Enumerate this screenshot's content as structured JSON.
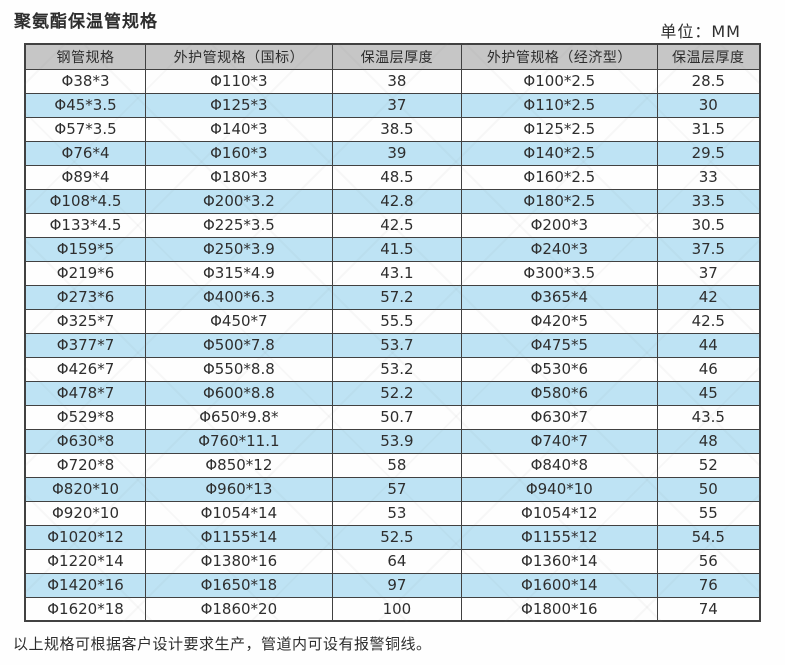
{
  "page": {
    "title": "聚氨酯保温管规格",
    "unit_label": "单位：MM",
    "footnote": "以上规格可根据客户设计要求生产，管道内可设有报警铜线。"
  },
  "colors": {
    "header_bg": "#c6c6c6",
    "stripe_blue": "#bee3f4",
    "border": "#414141",
    "text": "#2e2e2e"
  },
  "chart_data": {
    "type": "table",
    "title": "聚氨酯保温管规格",
    "unit": "MM",
    "columns": [
      "钢管规格",
      "外护管规格（国标）",
      "保温层厚度",
      "外护管规格（经济型）",
      "保温层厚度"
    ],
    "rows": [
      [
        "Φ38*3",
        "Φ110*3",
        "38",
        "Φ100*2.5",
        "28.5"
      ],
      [
        "Φ45*3.5",
        "Φ125*3",
        "37",
        "Φ110*2.5",
        "30"
      ],
      [
        "Φ57*3.5",
        "Φ140*3",
        "38.5",
        "Φ125*2.5",
        "31.5"
      ],
      [
        "Φ76*4",
        "Φ160*3",
        "39",
        "Φ140*2.5",
        "29.5"
      ],
      [
        "Φ89*4",
        "Φ180*3",
        "48.5",
        "Φ160*2.5",
        "33"
      ],
      [
        "Φ108*4.5",
        "Φ200*3.2",
        "42.8",
        "Φ180*2.5",
        "33.5"
      ],
      [
        "Φ133*4.5",
        "Φ225*3.5",
        "42.5",
        "Φ200*3",
        "30.5"
      ],
      [
        "Φ159*5",
        "Φ250*3.9",
        "41.5",
        "Φ240*3",
        "37.5"
      ],
      [
        "Φ219*6",
        "Φ315*4.9",
        "43.1",
        "Φ300*3.5",
        "37"
      ],
      [
        "Φ273*6",
        "Φ400*6.3",
        "57.2",
        "Φ365*4",
        "42"
      ],
      [
        "Φ325*7",
        "Φ450*7",
        "55.5",
        "Φ420*5",
        "42.5"
      ],
      [
        "Φ377*7",
        "Φ500*7.8",
        "53.7",
        "Φ475*5",
        "44"
      ],
      [
        "Φ426*7",
        "Φ550*8.8",
        "53.2",
        "Φ530*6",
        "46"
      ],
      [
        "Φ478*7",
        "Φ600*8.8",
        "52.2",
        "Φ580*6",
        "45"
      ],
      [
        "Φ529*8",
        "Φ650*9.8*",
        "50.7",
        "Φ630*7",
        "43.5"
      ],
      [
        "Φ630*8",
        "Φ760*11.1",
        "53.9",
        "Φ740*7",
        "48"
      ],
      [
        "Φ720*8",
        "Φ850*12",
        "58",
        "Φ840*8",
        "52"
      ],
      [
        "Φ820*10",
        "Φ960*13",
        "57",
        "Φ940*10",
        "50"
      ],
      [
        "Φ920*10",
        "Φ1054*14",
        "53",
        "Φ1054*12",
        "55"
      ],
      [
        "Φ1020*12",
        "Φ1155*14",
        "52.5",
        "Φ1155*12",
        "54.5"
      ],
      [
        "Φ1220*14",
        "Φ1380*16",
        "64",
        "Φ1360*14",
        "56"
      ],
      [
        "Φ1420*16",
        "Φ1650*18",
        "97",
        "Φ1600*14",
        "76"
      ],
      [
        "Φ1620*18",
        "Φ1860*20",
        "100",
        "Φ1800*16",
        "74"
      ]
    ],
    "layout": {
      "stripe_pattern": "even rows light blue",
      "grid": true
    }
  }
}
